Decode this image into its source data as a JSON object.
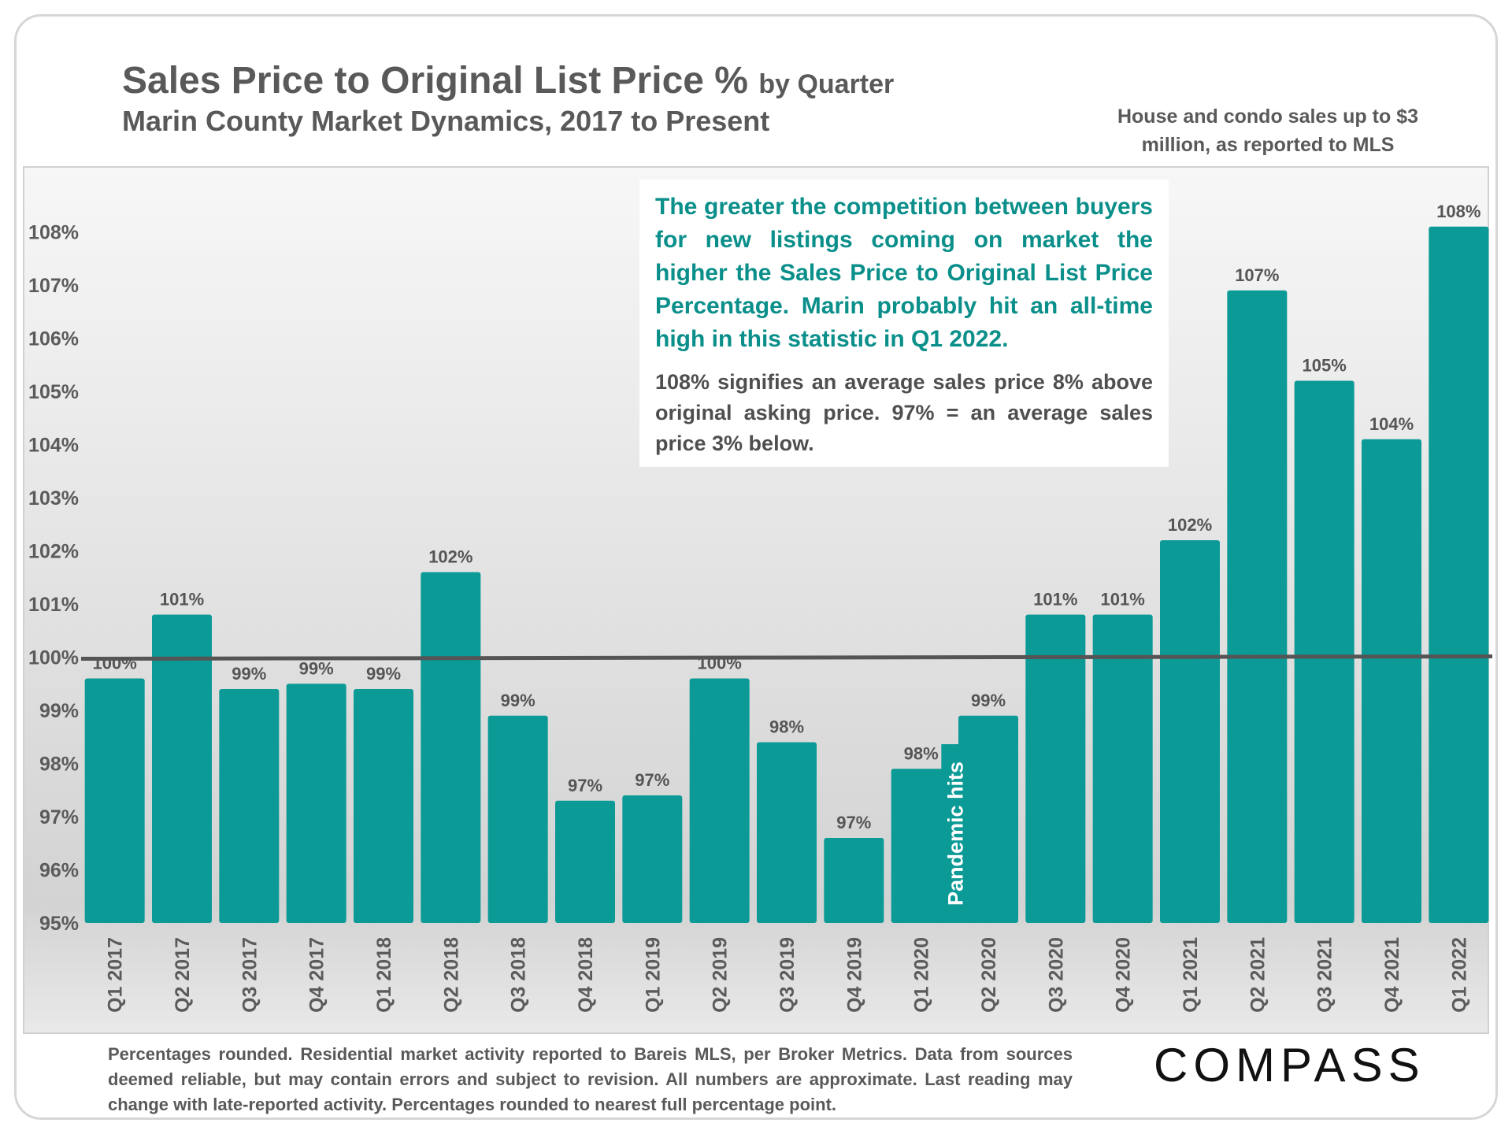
{
  "colors": {
    "bar": "#0b9a96",
    "baseline": "#555555",
    "accent_text": "#0b8f8a"
  },
  "header": {
    "title": "Sales Price to Original List Price %",
    "title_suffix": "by Quarter",
    "subtitle": "Marin County Market Dynamics, 2017 to Present",
    "scope_note": "House and condo sales up to $3 million, as reported to MLS"
  },
  "callout": {
    "lead": "The greater the competition between buyers for new listings coming on market the higher the Sales Price to Original List Price Percentage. Marin probably hit an all-time high in this statistic in Q1 2022.",
    "detail": "108% signifies an average sales price 8% above original asking price. 97% = an average sales price 3% below."
  },
  "chart_data": {
    "type": "bar",
    "title": "Sales Price to Original List Price % by Quarter",
    "xlabel": "",
    "ylabel": "",
    "ylim": [
      95,
      108.5
    ],
    "y_ticks": [
      "95%",
      "96%",
      "97%",
      "98%",
      "99%",
      "100%",
      "101%",
      "102%",
      "103%",
      "104%",
      "105%",
      "106%",
      "107%",
      "108%"
    ],
    "reference_line": 100,
    "categories": [
      "Q1 2017",
      "Q2 2017",
      "Q3 2017",
      "Q4 2017",
      "Q1 2018",
      "Q2 2018",
      "Q3 2018",
      "Q4 2018",
      "Q1 2019",
      "Q2 2019",
      "Q3 2019",
      "Q4 2019",
      "Q1 2020",
      "Q2 2020",
      "Q3 2020",
      "Q4 2020",
      "Q1 2021",
      "Q2 2021",
      "Q3 2021",
      "Q4 2021",
      "Q1 2022"
    ],
    "values": [
      99.6,
      100.8,
      99.4,
      99.5,
      99.4,
      101.6,
      98.9,
      97.3,
      97.4,
      99.6,
      98.4,
      96.6,
      97.9,
      98.9,
      100.8,
      100.8,
      102.2,
      106.9,
      105.2,
      104.1,
      108.1
    ],
    "labels": [
      "100%",
      "101%",
      "99%",
      "99%",
      "99%",
      "102%",
      "99%",
      "97%",
      "97%",
      "100%",
      "98%",
      "97%",
      "98%",
      "99%",
      "101%",
      "101%",
      "102%",
      "107%",
      "105%",
      "104%",
      "108%"
    ],
    "annotation": {
      "text": "Pandemic hits",
      "between": [
        "Q1 2020",
        "Q2 2020"
      ]
    }
  },
  "footer": {
    "note": "Percentages rounded. Residential market activity reported to Bareis MLS, per Broker Metrics. Data from sources deemed reliable, but may contain errors and subject to revision. All numbers are approximate. Last reading may change with late-reported activity. Percentages rounded to nearest full percentage point.",
    "logo_text": "COMPASS"
  }
}
